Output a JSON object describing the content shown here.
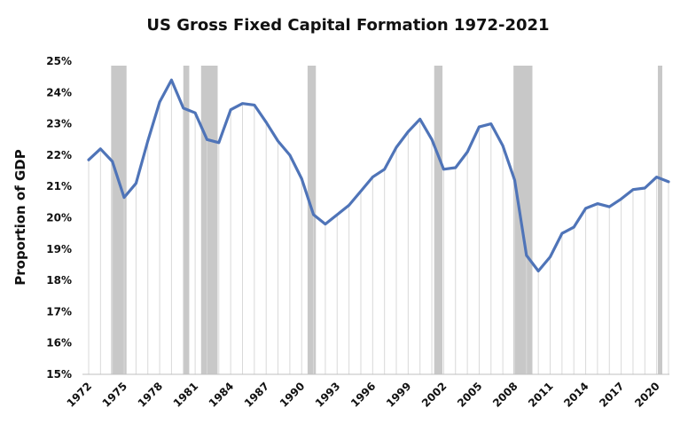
{
  "chart_data": {
    "type": "line",
    "title": "US Gross Fixed Capital Formation 1972-2021",
    "xlabel": "",
    "ylabel": "Proportion of GDP",
    "ylim": [
      15,
      25
    ],
    "y_ticks": [
      "15%",
      "16%",
      "17%",
      "18%",
      "19%",
      "20%",
      "21%",
      "22%",
      "23%",
      "24%",
      "25%"
    ],
    "x_tick_labels": [
      "1972",
      "1975",
      "1978",
      "1981",
      "1984",
      "1987",
      "1990",
      "1993",
      "1996",
      "1999",
      "2002",
      "2005",
      "2008",
      "2011",
      "2014",
      "2017",
      "2020"
    ],
    "x": [
      1972,
      1973,
      1974,
      1975,
      1976,
      1977,
      1978,
      1979,
      1980,
      1981,
      1982,
      1983,
      1984,
      1985,
      1986,
      1987,
      1988,
      1989,
      1990,
      1991,
      1992,
      1993,
      1994,
      1995,
      1996,
      1997,
      1998,
      1999,
      2000,
      2001,
      2002,
      2003,
      2004,
      2005,
      2006,
      2007,
      2008,
      2009,
      2010,
      2011,
      2012,
      2013,
      2014,
      2015,
      2016,
      2017,
      2018,
      2019,
      2020,
      2021
    ],
    "series": [
      {
        "values": [
          21.85,
          22.2,
          21.8,
          20.65,
          21.1,
          22.45,
          23.7,
          24.4,
          23.5,
          23.35,
          22.5,
          22.4,
          23.45,
          23.65,
          23.6,
          23.05,
          22.45,
          22.0,
          21.25,
          20.1,
          19.8,
          20.1,
          20.4,
          20.85,
          21.3,
          21.55,
          22.25,
          22.75,
          23.15,
          22.5,
          21.55,
          21.6,
          22.1,
          22.9,
          23.0,
          22.3,
          21.2,
          18.8,
          18.3,
          18.75,
          19.5,
          19.7,
          20.3,
          20.45,
          20.35,
          20.6,
          20.9,
          20.95,
          21.3,
          21.15
        ]
      }
    ],
    "recession_bands": [
      [
        1973.9,
        1975.2
      ],
      [
        1980.0,
        1980.5
      ],
      [
        1981.5,
        1982.9
      ],
      [
        1990.5,
        1991.2
      ],
      [
        2001.2,
        2001.9
      ],
      [
        2007.9,
        2009.5
      ],
      [
        2020.1,
        2020.4
      ]
    ],
    "line_color": "#4f74b8",
    "band_color": "#c8c8c8",
    "gridline_color": "#d9d9d9",
    "grid": "vertical per year"
  }
}
